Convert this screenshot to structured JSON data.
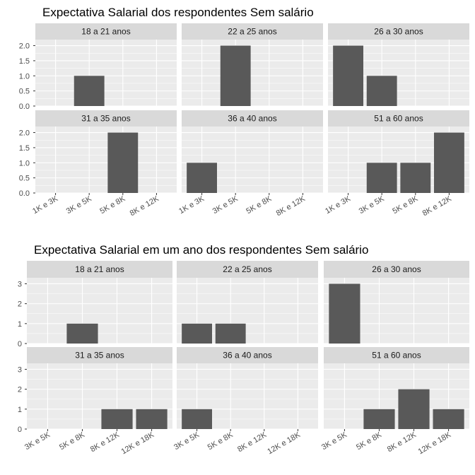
{
  "colors": {
    "panel_bg": "#ebebeb",
    "strip_bg": "#d9d9d9",
    "grid": "#ffffff",
    "bar": "#595959",
    "text": "#000000",
    "tick_text": "#4d4d4d"
  },
  "chart_data": [
    {
      "type": "bar",
      "layout": "facet-grid-2x3",
      "title": "Expectativa Salarial dos respondentes Sem salário",
      "categories": [
        "1K e 3K",
        "3K e 5K",
        "5K e 8K",
        "8K e 12K"
      ],
      "ylim": [
        0,
        2.2
      ],
      "yticks": [
        "0.0",
        "0.5",
        "1.0",
        "1.5",
        "2.0"
      ],
      "grid": true,
      "panels": [
        {
          "label": "18 a 21 anos",
          "values": [
            0,
            1,
            0,
            0
          ]
        },
        {
          "label": "22 a 25 anos",
          "values": [
            0,
            2,
            0,
            0
          ]
        },
        {
          "label": "26 a 30 anos",
          "values": [
            2,
            1,
            0,
            0
          ]
        },
        {
          "label": "31 a 35 anos",
          "values": [
            0,
            0,
            2,
            0
          ]
        },
        {
          "label": "36 a 40 anos",
          "values": [
            1,
            0,
            0,
            0
          ]
        },
        {
          "label": "51 a 60 anos",
          "values": [
            0,
            1,
            1,
            2
          ]
        }
      ]
    },
    {
      "type": "bar",
      "layout": "facet-grid-2x3",
      "title": "Expectativa Salarial em um ano dos respondentes Sem salário",
      "categories": [
        "3K e 5K",
        "5K e 8K",
        "8K e 12K",
        "12K e 18K"
      ],
      "ylim": [
        0,
        3.3
      ],
      "yticks": [
        "0",
        "1",
        "2",
        "3"
      ],
      "grid": true,
      "panels": [
        {
          "label": "18 a 21 anos",
          "values": [
            0,
            1,
            0,
            0
          ]
        },
        {
          "label": "22 a 25 anos",
          "values": [
            1,
            1,
            0,
            0
          ]
        },
        {
          "label": "26 a 30 anos",
          "values": [
            3,
            0,
            0,
            0
          ]
        },
        {
          "label": "31 a 35 anos",
          "values": [
            0,
            0,
            1,
            1
          ]
        },
        {
          "label": "36 a 40 anos",
          "values": [
            1,
            0,
            0,
            0
          ]
        },
        {
          "label": "51 a 60 anos",
          "values": [
            0,
            1,
            2,
            1
          ]
        }
      ]
    }
  ]
}
